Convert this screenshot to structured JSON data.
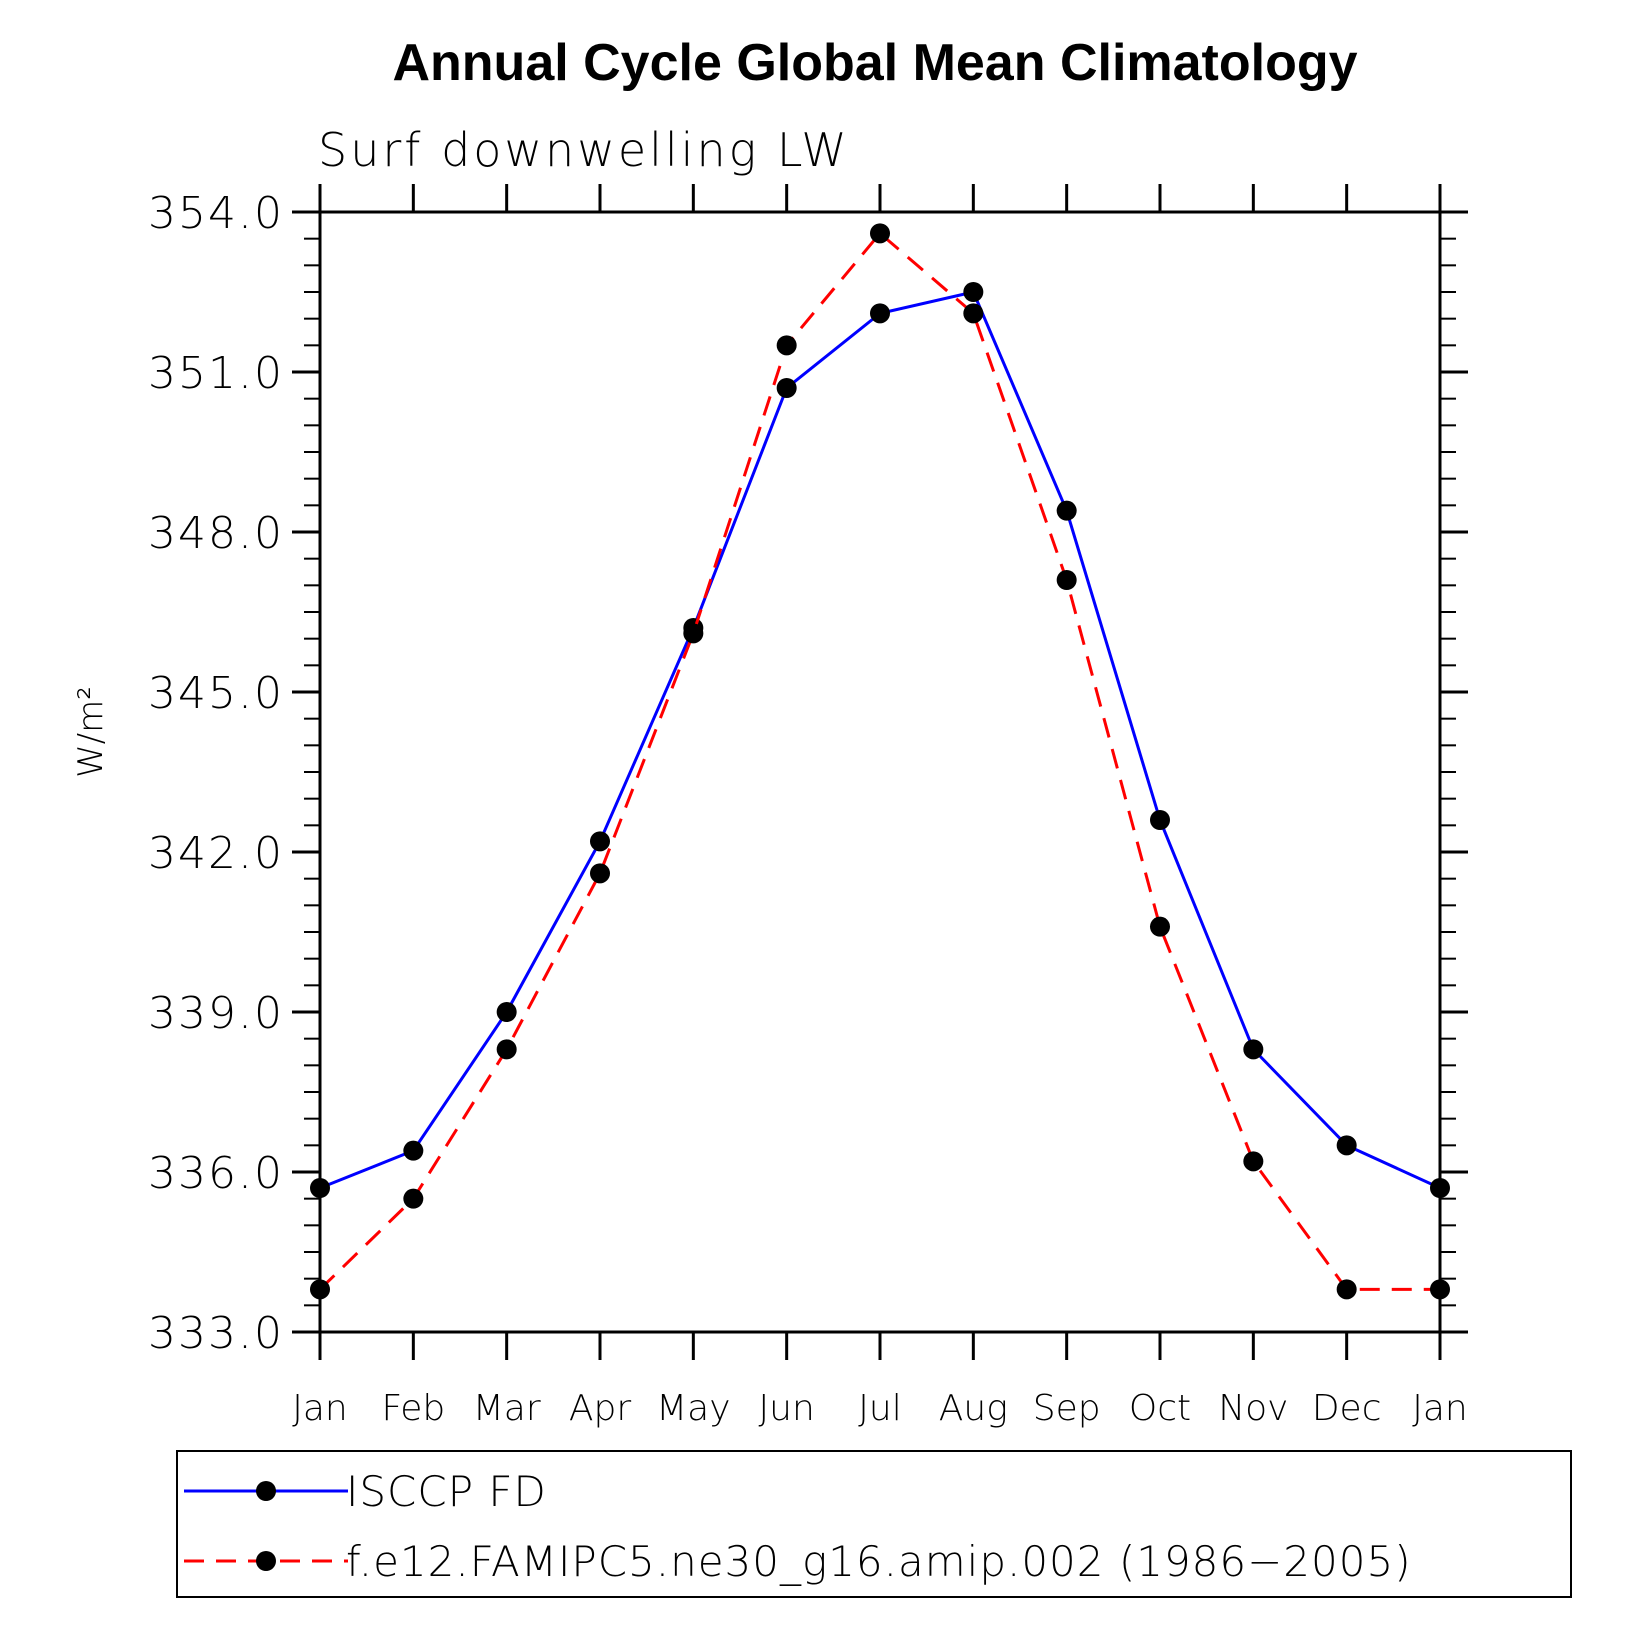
{
  "chart_data": {
    "type": "line",
    "title": "Annual Cycle Global Mean Climatology",
    "subtitle": "Surf downwelling LW",
    "ylabel": "W/m²",
    "xlabel": "",
    "categories": [
      "Jan",
      "Feb",
      "Mar",
      "Apr",
      "May",
      "Jun",
      "Jul",
      "Aug",
      "Sep",
      "Oct",
      "Nov",
      "Dec",
      "Jan"
    ],
    "ylim": [
      333.0,
      354.0
    ],
    "yticks": [
      "354.0",
      "351.0",
      "348.0",
      "345.0",
      "342.0",
      "339.0",
      "336.0",
      "333.0"
    ],
    "ytick_values": [
      354,
      351,
      348,
      345,
      342,
      339,
      336,
      333
    ],
    "yminor_step": 0.5,
    "grid": false,
    "legend_position": "bottom",
    "series": [
      {
        "name": "ISCCP FD",
        "color": "#0000ff",
        "line_style": "solid",
        "marker": "filled-circle",
        "values": [
          335.7,
          336.4,
          339.0,
          342.2,
          346.2,
          350.7,
          352.1,
          352.5,
          348.4,
          342.6,
          338.3,
          336.5,
          335.7
        ]
      },
      {
        "name": "f.e12.FAMIPC5.ne30_g16.amip.002 (1986-2005)",
        "color": "#ff0000",
        "line_style": "dashed",
        "marker": "filled-circle",
        "values": [
          333.8,
          335.5,
          338.3,
          341.6,
          346.1,
          351.5,
          353.6,
          352.1,
          347.1,
          340.6,
          336.2,
          333.8,
          333.8
        ]
      }
    ]
  },
  "legend": {
    "items": [
      {
        "label": "ISCCP FD",
        "color": "#0000ff",
        "style": "solid"
      },
      {
        "label": "f.e12.FAMIPC5.ne30_g16.amip.002 (1986−2005)",
        "color": "#ff0000",
        "style": "dashed"
      }
    ]
  }
}
